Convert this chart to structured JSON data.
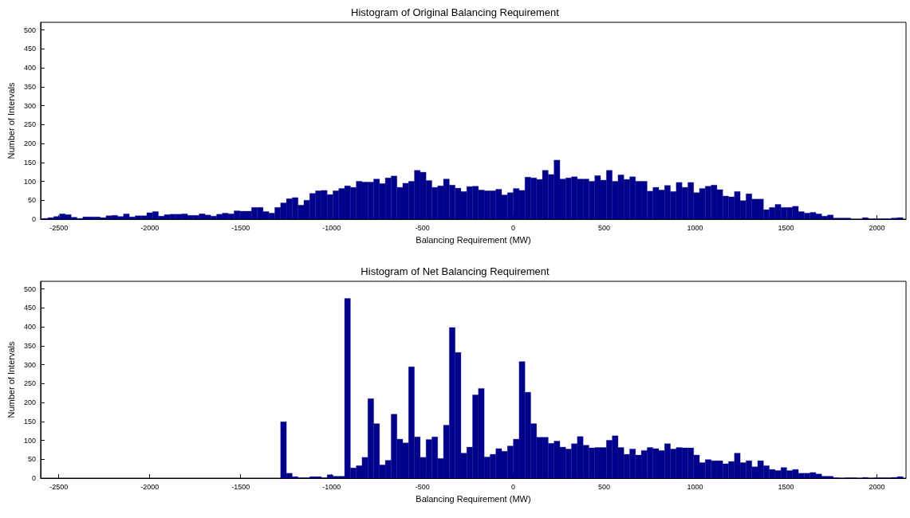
{
  "chart_data": [
    {
      "type": "histogram",
      "title": "Histogram of Original Balancing Requirement",
      "xlabel": "Balancing Requirement (MW)",
      "ylabel": "Number of Intervals",
      "color": "#00008b",
      "bins": [
        -2592,
        -2560,
        -2528,
        -2496,
        -2464,
        -2432,
        -2400,
        -2368,
        -2336,
        -2304,
        -2272,
        -2240,
        -2208,
        -2176,
        -2144,
        -2112,
        -2080,
        -2048,
        -2016,
        -1984,
        -1952,
        -1920,
        -1888,
        -1856,
        -1824,
        -1792,
        -1760,
        -1728,
        -1696,
        -1664,
        -1632,
        -1600,
        -1568,
        -1536,
        -1504,
        -1472,
        -1440,
        -1408,
        -1376,
        -1344,
        -1312,
        -1280,
        -1248,
        -1216,
        -1184,
        -1152,
        -1120,
        -1088,
        -1056,
        -1024,
        -992,
        -960,
        -928,
        -896,
        -864,
        -832,
        -800,
        -768,
        -736,
        -704,
        -672,
        -640,
        -608,
        -576,
        -544,
        -512,
        -480,
        -448,
        -416,
        -384,
        -352,
        -320,
        -288,
        -256,
        -224,
        -192,
        -160,
        -128,
        -96,
        -64,
        -32,
        0,
        32,
        64,
        96,
        128,
        160,
        192,
        224,
        256,
        288,
        320,
        352,
        384,
        416,
        448,
        480,
        512,
        544,
        576,
        608,
        640,
        672,
        704,
        736,
        768,
        800,
        832,
        864,
        896,
        928,
        960,
        992,
        1024,
        1056,
        1088,
        1120,
        1152,
        1184,
        1216,
        1248,
        1280,
        1312,
        1344,
        1376,
        1408,
        1440,
        1472,
        1504,
        1536,
        1568,
        1600,
        1632,
        1664,
        1696,
        1728,
        1760,
        1792,
        1824,
        1856,
        1888,
        1920,
        1952,
        1984,
        2016,
        2048,
        2080,
        2112,
        2144
      ],
      "values": [
        2,
        4,
        7,
        14,
        12,
        5,
        2,
        6,
        6,
        6,
        4,
        9,
        10,
        7,
        14,
        6,
        9,
        9,
        17,
        20,
        8,
        12,
        13,
        13,
        14,
        10,
        10,
        14,
        11,
        8,
        13,
        16,
        14,
        22,
        21,
        21,
        31,
        31,
        20,
        16,
        31,
        43,
        54,
        57,
        37,
        50,
        68,
        75,
        76,
        65,
        75,
        81,
        88,
        84,
        100,
        98,
        98,
        106,
        94,
        109,
        114,
        84,
        95,
        100,
        129,
        124,
        102,
        84,
        88,
        106,
        90,
        82,
        73,
        86,
        87,
        77,
        75,
        75,
        79,
        64,
        70,
        81,
        76,
        111,
        109,
        105,
        129,
        118,
        156,
        106,
        109,
        112,
        106,
        106,
        100,
        115,
        103,
        129,
        100,
        117,
        105,
        112,
        100,
        100,
        74,
        84,
        77,
        89,
        73,
        97,
        84,
        97,
        70,
        81,
        87,
        90,
        78,
        61,
        59,
        73,
        49,
        67,
        53,
        53,
        25,
        31,
        39,
        31,
        31,
        34,
        20,
        16,
        18,
        14,
        8,
        11,
        3,
        3,
        3,
        0,
        0,
        4,
        1,
        1,
        1,
        1,
        3,
        4
      ],
      "xlim": [
        -2600,
        2160
      ],
      "ylim": [
        0,
        520
      ],
      "xticks": [
        -2500,
        -2000,
        -1500,
        -1000,
        -500,
        0,
        500,
        1000,
        1500,
        2000
      ],
      "yticks": [
        0,
        50,
        100,
        150,
        200,
        250,
        300,
        350,
        400,
        450,
        500
      ]
    },
    {
      "type": "histogram",
      "title": "Histogram of Net Balancing Requirement",
      "xlabel": "Balancing Requirement (MW)",
      "ylabel": "Number of Intervals",
      "color": "#00008b",
      "bins": [
        -1280,
        -1248,
        -1216,
        -1184,
        -1152,
        -1120,
        -1088,
        -1056,
        -1024,
        -992,
        -960,
        -928,
        -896,
        -864,
        -832,
        -800,
        -768,
        -736,
        -704,
        -672,
        -640,
        -608,
        -576,
        -544,
        -512,
        -480,
        -448,
        -416,
        -384,
        -352,
        -320,
        -288,
        -256,
        -224,
        -192,
        -160,
        -128,
        -96,
        -64,
        -32,
        0,
        32,
        64,
        96,
        128,
        160,
        192,
        224,
        256,
        288,
        320,
        352,
        384,
        416,
        448,
        480,
        512,
        544,
        576,
        608,
        640,
        672,
        704,
        736,
        768,
        800,
        832,
        864,
        896,
        928,
        960,
        992,
        1024,
        1056,
        1088,
        1120,
        1152,
        1184,
        1216,
        1248,
        1280,
        1312,
        1344,
        1376,
        1408,
        1440,
        1472,
        1504,
        1536,
        1568,
        1600,
        1632,
        1664,
        1696,
        1728,
        1760,
        1792,
        1824,
        1856,
        1888,
        1920,
        1952,
        1984,
        2016,
        2048,
        2080,
        2112,
        2144
      ],
      "values": [
        149,
        13,
        4,
        1,
        1,
        4,
        4,
        1,
        9,
        5,
        5,
        475,
        27,
        33,
        55,
        210,
        144,
        35,
        47,
        169,
        103,
        93,
        294,
        109,
        55,
        102,
        109,
        52,
        140,
        398,
        332,
        66,
        82,
        220,
        237,
        56,
        63,
        78,
        71,
        85,
        103,
        308,
        227,
        144,
        108,
        108,
        92,
        98,
        82,
        77,
        91,
        110,
        87,
        80,
        81,
        81,
        100,
        112,
        81,
        63,
        77,
        61,
        73,
        81,
        78,
        73,
        91,
        77,
        81,
        80,
        80,
        61,
        41,
        49,
        46,
        46,
        38,
        44,
        66,
        41,
        46,
        30,
        46,
        33,
        23,
        20,
        28,
        20,
        23,
        13,
        13,
        15,
        11,
        5,
        5,
        1,
        0,
        1,
        1,
        0,
        2,
        0,
        1,
        1,
        1,
        2,
        4
      ],
      "xlim": [
        -2600,
        2160
      ],
      "ylim": [
        0,
        520
      ],
      "xticks": [
        -2500,
        -2000,
        -1500,
        -1000,
        -500,
        0,
        500,
        1000,
        1500,
        2000
      ],
      "yticks": [
        0,
        50,
        100,
        150,
        200,
        250,
        300,
        350,
        400,
        450,
        500
      ]
    }
  ]
}
